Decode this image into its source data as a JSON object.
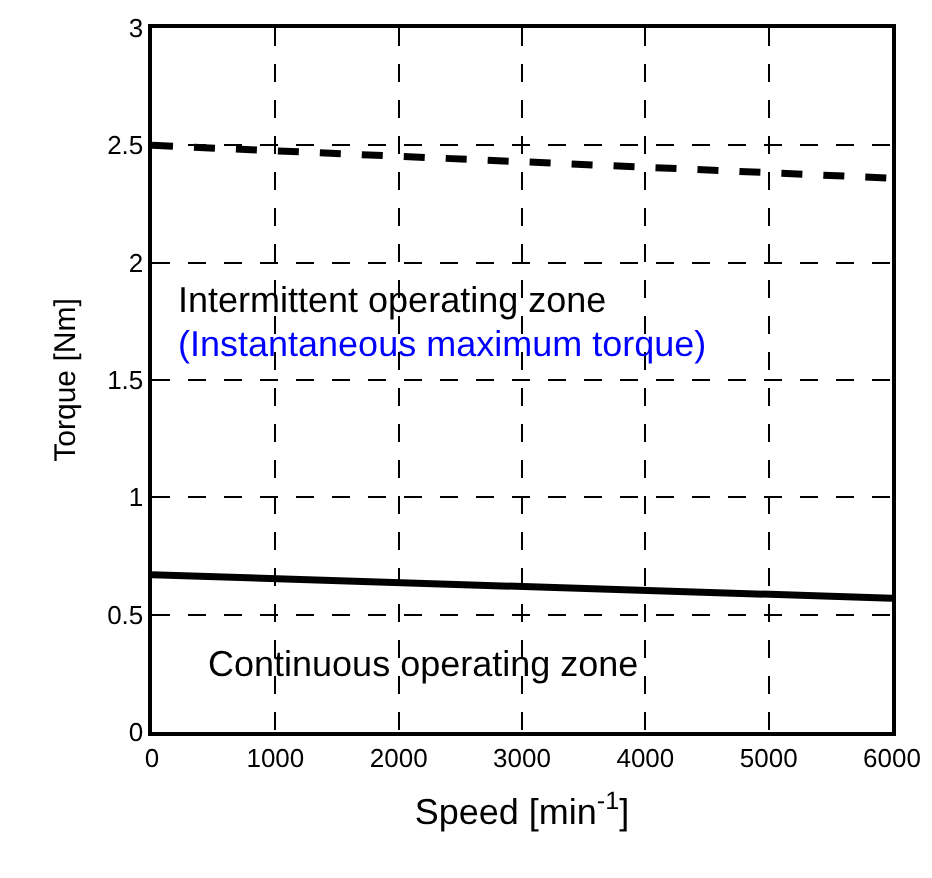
{
  "chart_data": {
    "type": "line",
    "xlabel": "Speed [min$^{-1}$]",
    "ylabel": "Torque [Nm]",
    "x": [
      0,
      6000
    ],
    "series": [
      {
        "color": "#000000",
        "values": [
          2.5,
          2.36
        ],
        "line_style": "dashed"
      },
      {
        "color": "#000000",
        "values": [
          0.67,
          0.57
        ],
        "line_style": "solid"
      }
    ],
    "xlim": [
      0,
      6000
    ],
    "xticks": [
      0,
      1000,
      2000,
      3000,
      4000,
      5000,
      6000
    ],
    "ylim": [
      0,
      3
    ],
    "yticks": [
      0,
      0.5,
      1,
      1.5,
      2,
      2.5,
      3
    ],
    "grid": true,
    "annotations": [
      "Intermittent operating zone",
      "(Instantaneous maximum torque)",
      "Continuous operating zone"
    ]
  }
}
